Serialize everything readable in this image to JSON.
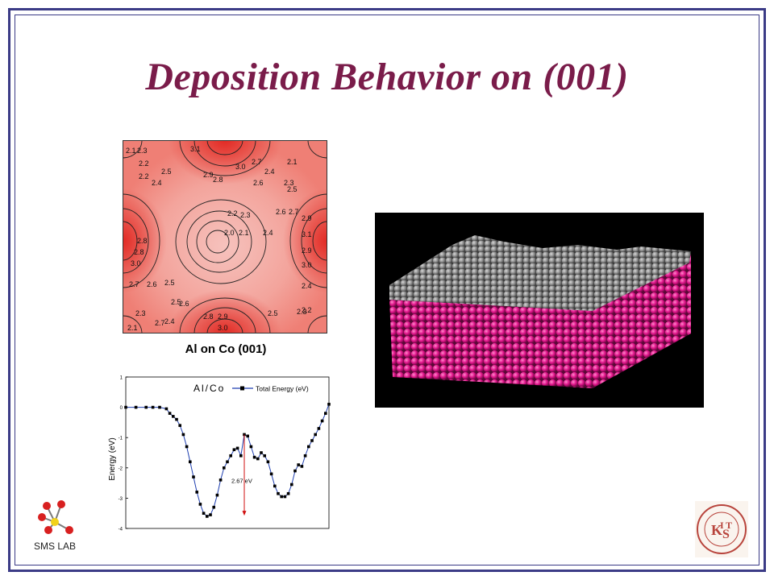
{
  "slide": {
    "title": "Deposition Behavior on (001)",
    "contour_caption": "Al on Co (001)",
    "lab_name": "SMS LAB"
  },
  "contour_map": {
    "labels": [
      "2.1",
      "2.3",
      "3.1",
      "2.2",
      "3.0",
      "2.7",
      "2.1",
      "2.2",
      "2.5",
      "2.9",
      "2.4",
      "2.8",
      "2.6",
      "2.4",
      "2.3",
      "2.5",
      "2.2",
      "2.3",
      "2.6",
      "2.7",
      "2.9",
      "2.0",
      "2.1",
      "2.4",
      "2.8",
      "3.1",
      "2.8",
      "2.9",
      "3.0",
      "3.0",
      "2.7",
      "2.6",
      "2.5",
      "2.4",
      "2.5",
      "2.6",
      "2.3",
      "2.2",
      "2.3",
      "2.8",
      "2.9",
      "2.7",
      "2.5",
      "2.1",
      "2.4",
      "3.0"
    ],
    "colors": {
      "high": "#e53a35",
      "low": "#f4b6b1"
    }
  },
  "chart_data": {
    "type": "line",
    "title": "Al/Co",
    "legend": "Total Energy (eV)",
    "ylabel": "Energy (eV)",
    "xlabel": "",
    "ylim": [
      -4,
      1
    ],
    "xlim": [
      0,
      60
    ],
    "yticks": [
      1,
      0,
      -1,
      -2,
      -3,
      -4
    ],
    "annotation": "2.67 eV",
    "series": [
      {
        "name": "Total Energy (eV)",
        "x": [
          0,
          3,
          6,
          8,
          10,
          12,
          13,
          14,
          15,
          16,
          17,
          18,
          19,
          20,
          21,
          22,
          23,
          24,
          25,
          26,
          27,
          28,
          29,
          30,
          31,
          32,
          33,
          34,
          35,
          36,
          37,
          38,
          39,
          40,
          41,
          42,
          43,
          44,
          45,
          46,
          47,
          48,
          49,
          50,
          51,
          52,
          53,
          54,
          55,
          56,
          57,
          58,
          59,
          60
        ],
        "y": [
          0,
          0,
          0,
          0,
          0,
          -0.05,
          -0.2,
          -0.3,
          -0.4,
          -0.6,
          -0.9,
          -1.3,
          -1.8,
          -2.3,
          -2.8,
          -3.2,
          -3.5,
          -3.6,
          -3.55,
          -3.3,
          -2.9,
          -2.4,
          -2.0,
          -1.8,
          -1.6,
          -1.4,
          -1.35,
          -1.6,
          -0.9,
          -0.95,
          -1.3,
          -1.65,
          -1.7,
          -1.5,
          -1.6,
          -1.8,
          -2.2,
          -2.6,
          -2.85,
          -2.95,
          -2.95,
          -2.85,
          -2.55,
          -2.1,
          -1.9,
          -1.95,
          -1.6,
          -1.3,
          -1.1,
          -0.9,
          -0.7,
          -0.45,
          -0.2,
          0.1
        ]
      }
    ]
  },
  "md_render": {
    "colors": {
      "background": "#000000",
      "substrate": "#e0148a",
      "adlayer": "#8c8c8c"
    }
  }
}
